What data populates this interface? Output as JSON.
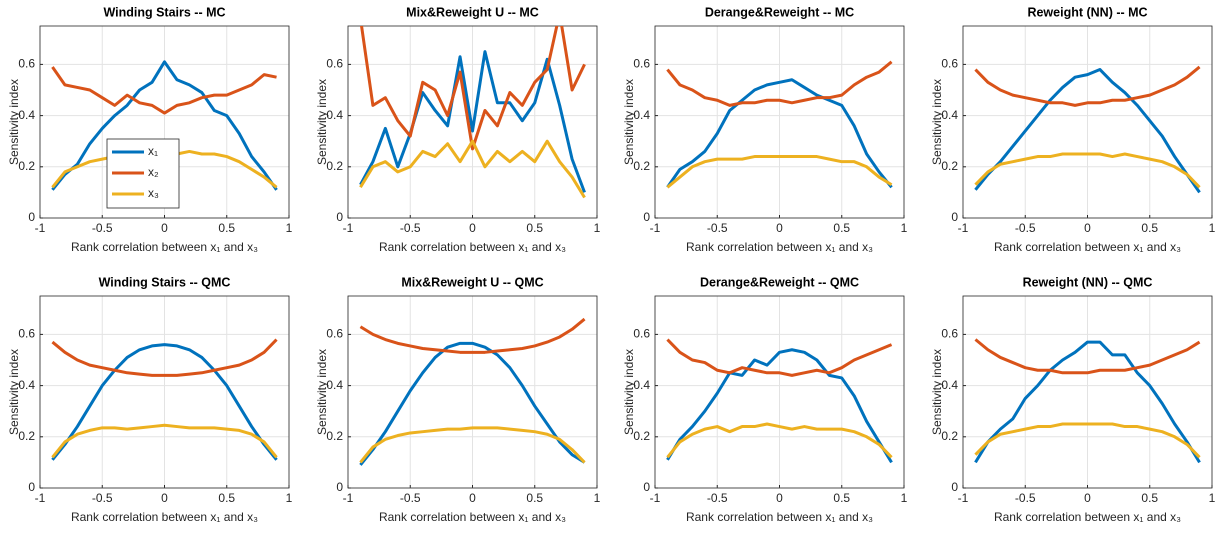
{
  "chart_data": [
    {
      "type": "line",
      "title": "Winding Stairs -- MC",
      "xlabel": "Rank correlation between x₁ and x₃",
      "ylabel": "Sensitivity index",
      "x": [
        -0.9,
        -0.8,
        -0.7,
        -0.6,
        -0.5,
        -0.4,
        -0.3,
        -0.2,
        -0.1,
        0,
        0.1,
        0.2,
        0.3,
        0.4,
        0.5,
        0.6,
        0.7,
        0.8,
        0.9
      ],
      "xlim": [
        -1,
        1
      ],
      "ylim": [
        0,
        0.75
      ],
      "xticks": [
        -1,
        -0.5,
        0,
        0.5,
        1
      ],
      "yticks": [
        0,
        0.2,
        0.4,
        0.6
      ],
      "grid": true,
      "legend": "lower left",
      "series": [
        {
          "name": "x₁",
          "color": "#0072BD",
          "values": [
            0.11,
            0.17,
            0.21,
            0.29,
            0.35,
            0.4,
            0.44,
            0.5,
            0.53,
            0.61,
            0.54,
            0.52,
            0.49,
            0.42,
            0.4,
            0.33,
            0.24,
            0.18,
            0.11
          ]
        },
        {
          "name": "x₂",
          "color": "#D95319",
          "values": [
            0.59,
            0.52,
            0.51,
            0.5,
            0.47,
            0.44,
            0.48,
            0.45,
            0.44,
            0.41,
            0.44,
            0.45,
            0.47,
            0.48,
            0.48,
            0.5,
            0.52,
            0.56,
            0.55
          ]
        },
        {
          "name": "x₃",
          "color": "#EDB120",
          "values": [
            0.12,
            0.18,
            0.2,
            0.22,
            0.23,
            0.24,
            0.25,
            0.24,
            0.25,
            0.24,
            0.25,
            0.26,
            0.25,
            0.25,
            0.24,
            0.22,
            0.19,
            0.16,
            0.12
          ]
        }
      ]
    },
    {
      "type": "line",
      "title": "Mix&Reweight U -- MC",
      "xlabel": "Rank correlation between x₁ and x₃",
      "ylabel": "Sensitivity index",
      "x": [
        -0.9,
        -0.8,
        -0.7,
        -0.6,
        -0.5,
        -0.4,
        -0.3,
        -0.2,
        -0.1,
        0,
        0.1,
        0.2,
        0.3,
        0.4,
        0.5,
        0.6,
        0.7,
        0.8,
        0.9
      ],
      "xlim": [
        -1,
        1
      ],
      "ylim": [
        0,
        0.75
      ],
      "xticks": [
        -1,
        -0.5,
        0,
        0.5,
        1
      ],
      "yticks": [
        0,
        0.2,
        0.4,
        0.6
      ],
      "grid": true,
      "series": [
        {
          "color": "#0072BD",
          "values": [
            0.13,
            0.22,
            0.35,
            0.2,
            0.33,
            0.49,
            0.42,
            0.36,
            0.63,
            0.34,
            0.65,
            0.45,
            0.45,
            0.38,
            0.45,
            0.62,
            0.44,
            0.23,
            0.1
          ]
        },
        {
          "color": "#D95319",
          "values": [
            0.78,
            0.44,
            0.47,
            0.38,
            0.32,
            0.53,
            0.5,
            0.4,
            0.57,
            0.27,
            0.42,
            0.36,
            0.49,
            0.44,
            0.53,
            0.58,
            0.8,
            0.5,
            0.6
          ]
        },
        {
          "color": "#EDB120",
          "values": [
            0.12,
            0.2,
            0.22,
            0.18,
            0.2,
            0.26,
            0.24,
            0.29,
            0.22,
            0.3,
            0.2,
            0.26,
            0.22,
            0.26,
            0.22,
            0.3,
            0.22,
            0.16,
            0.08
          ]
        }
      ]
    },
    {
      "type": "line",
      "title": "Derange&Reweight -- MC",
      "xlabel": "Rank correlation between x₁ and x₃",
      "ylabel": "Sensitivity index",
      "x": [
        -0.9,
        -0.8,
        -0.7,
        -0.6,
        -0.5,
        -0.4,
        -0.3,
        -0.2,
        -0.1,
        0,
        0.1,
        0.2,
        0.3,
        0.4,
        0.5,
        0.6,
        0.7,
        0.8,
        0.9
      ],
      "xlim": [
        -1,
        1
      ],
      "ylim": [
        0,
        0.75
      ],
      "xticks": [
        -1,
        -0.5,
        0,
        0.5,
        1
      ],
      "yticks": [
        0,
        0.2,
        0.4,
        0.6
      ],
      "grid": true,
      "series": [
        {
          "color": "#0072BD",
          "values": [
            0.12,
            0.19,
            0.22,
            0.26,
            0.33,
            0.42,
            0.46,
            0.5,
            0.52,
            0.53,
            0.54,
            0.51,
            0.48,
            0.46,
            0.44,
            0.36,
            0.25,
            0.18,
            0.12
          ]
        },
        {
          "color": "#D95319",
          "values": [
            0.58,
            0.52,
            0.5,
            0.47,
            0.46,
            0.44,
            0.45,
            0.45,
            0.46,
            0.46,
            0.45,
            0.46,
            0.47,
            0.47,
            0.48,
            0.52,
            0.55,
            0.57,
            0.61
          ]
        },
        {
          "color": "#EDB120",
          "values": [
            0.12,
            0.16,
            0.2,
            0.22,
            0.23,
            0.23,
            0.23,
            0.24,
            0.24,
            0.24,
            0.24,
            0.24,
            0.24,
            0.23,
            0.22,
            0.22,
            0.2,
            0.16,
            0.13
          ]
        }
      ]
    },
    {
      "type": "line",
      "title": "Reweight (NN) -- MC",
      "xlabel": "Rank correlation between x₁ and x₃",
      "ylabel": "Sensitivity index",
      "x": [
        -0.9,
        -0.8,
        -0.7,
        -0.6,
        -0.5,
        -0.4,
        -0.3,
        -0.2,
        -0.1,
        0,
        0.1,
        0.2,
        0.3,
        0.4,
        0.5,
        0.6,
        0.7,
        0.8,
        0.9
      ],
      "xlim": [
        -1,
        1
      ],
      "ylim": [
        0,
        0.75
      ],
      "xticks": [
        -1,
        -0.5,
        0,
        0.5,
        1
      ],
      "yticks": [
        0,
        0.2,
        0.4,
        0.6
      ],
      "grid": true,
      "series": [
        {
          "color": "#0072BD",
          "values": [
            0.11,
            0.17,
            0.22,
            0.28,
            0.34,
            0.4,
            0.46,
            0.51,
            0.55,
            0.56,
            0.58,
            0.53,
            0.49,
            0.44,
            0.38,
            0.32,
            0.24,
            0.17,
            0.1
          ]
        },
        {
          "color": "#D95319",
          "values": [
            0.58,
            0.53,
            0.5,
            0.48,
            0.47,
            0.46,
            0.45,
            0.45,
            0.44,
            0.45,
            0.45,
            0.46,
            0.46,
            0.47,
            0.48,
            0.5,
            0.52,
            0.55,
            0.59
          ]
        },
        {
          "color": "#EDB120",
          "values": [
            0.13,
            0.18,
            0.21,
            0.22,
            0.23,
            0.24,
            0.24,
            0.25,
            0.25,
            0.25,
            0.25,
            0.24,
            0.25,
            0.24,
            0.23,
            0.22,
            0.2,
            0.17,
            0.12
          ]
        }
      ]
    },
    {
      "type": "line",
      "title": "Winding Stairs -- QMC",
      "xlabel": "Rank correlation between x₁ and x₃",
      "ylabel": "Sensitivity index",
      "x": [
        -0.9,
        -0.8,
        -0.7,
        -0.6,
        -0.5,
        -0.4,
        -0.3,
        -0.2,
        -0.1,
        0,
        0.1,
        0.2,
        0.3,
        0.4,
        0.5,
        0.6,
        0.7,
        0.8,
        0.9
      ],
      "xlim": [
        -1,
        1
      ],
      "ylim": [
        0,
        0.75
      ],
      "xticks": [
        -1,
        -0.5,
        0,
        0.5,
        1
      ],
      "yticks": [
        0,
        0.2,
        0.4,
        0.6
      ],
      "grid": true,
      "series": [
        {
          "color": "#0072BD",
          "values": [
            0.11,
            0.17,
            0.24,
            0.32,
            0.4,
            0.46,
            0.51,
            0.54,
            0.555,
            0.56,
            0.555,
            0.54,
            0.51,
            0.46,
            0.4,
            0.32,
            0.24,
            0.17,
            0.11
          ]
        },
        {
          "color": "#D95319",
          "values": [
            0.57,
            0.53,
            0.5,
            0.48,
            0.47,
            0.46,
            0.45,
            0.445,
            0.44,
            0.44,
            0.44,
            0.445,
            0.45,
            0.46,
            0.47,
            0.48,
            0.5,
            0.53,
            0.58
          ]
        },
        {
          "color": "#EDB120",
          "values": [
            0.12,
            0.18,
            0.21,
            0.225,
            0.235,
            0.235,
            0.23,
            0.235,
            0.24,
            0.245,
            0.24,
            0.235,
            0.235,
            0.235,
            0.23,
            0.225,
            0.21,
            0.18,
            0.12
          ]
        }
      ]
    },
    {
      "type": "line",
      "title": "Mix&Reweight U -- QMC",
      "xlabel": "Rank correlation between x₁ and x₃",
      "ylabel": "Sensitivity index",
      "x": [
        -0.9,
        -0.8,
        -0.7,
        -0.6,
        -0.5,
        -0.4,
        -0.3,
        -0.2,
        -0.1,
        0,
        0.1,
        0.2,
        0.3,
        0.4,
        0.5,
        0.6,
        0.7,
        0.8,
        0.9
      ],
      "xlim": [
        -1,
        1
      ],
      "ylim": [
        0,
        0.75
      ],
      "xticks": [
        -1,
        -0.5,
        0,
        0.5,
        1
      ],
      "yticks": [
        0,
        0.2,
        0.4,
        0.6
      ],
      "grid": true,
      "series": [
        {
          "color": "#0072BD",
          "values": [
            0.09,
            0.15,
            0.22,
            0.3,
            0.38,
            0.45,
            0.51,
            0.55,
            0.565,
            0.565,
            0.55,
            0.52,
            0.47,
            0.4,
            0.32,
            0.25,
            0.18,
            0.13,
            0.1
          ]
        },
        {
          "color": "#D95319",
          "values": [
            0.63,
            0.6,
            0.58,
            0.565,
            0.555,
            0.545,
            0.54,
            0.535,
            0.53,
            0.53,
            0.53,
            0.535,
            0.54,
            0.545,
            0.555,
            0.57,
            0.59,
            0.62,
            0.66
          ]
        },
        {
          "color": "#EDB120",
          "values": [
            0.1,
            0.16,
            0.19,
            0.205,
            0.215,
            0.22,
            0.225,
            0.23,
            0.23,
            0.235,
            0.235,
            0.235,
            0.23,
            0.225,
            0.22,
            0.21,
            0.19,
            0.15,
            0.1
          ]
        }
      ]
    },
    {
      "type": "line",
      "title": "Derange&Reweight -- QMC",
      "xlabel": "Rank correlation between x₁ and x₃",
      "ylabel": "Sensitivity index",
      "x": [
        -0.9,
        -0.8,
        -0.7,
        -0.6,
        -0.5,
        -0.4,
        -0.3,
        -0.2,
        -0.1,
        0,
        0.1,
        0.2,
        0.3,
        0.4,
        0.5,
        0.6,
        0.7,
        0.8,
        0.9
      ],
      "xlim": [
        -1,
        1
      ],
      "ylim": [
        0,
        0.75
      ],
      "xticks": [
        -1,
        -0.5,
        0,
        0.5,
        1
      ],
      "yticks": [
        0,
        0.2,
        0.4,
        0.6
      ],
      "grid": true,
      "series": [
        {
          "color": "#0072BD",
          "values": [
            0.11,
            0.19,
            0.24,
            0.3,
            0.37,
            0.45,
            0.44,
            0.5,
            0.48,
            0.53,
            0.54,
            0.53,
            0.5,
            0.44,
            0.43,
            0.36,
            0.26,
            0.18,
            0.1
          ]
        },
        {
          "color": "#D95319",
          "values": [
            0.58,
            0.53,
            0.5,
            0.49,
            0.46,
            0.45,
            0.47,
            0.46,
            0.45,
            0.45,
            0.44,
            0.45,
            0.46,
            0.45,
            0.47,
            0.5,
            0.52,
            0.54,
            0.56
          ]
        },
        {
          "color": "#EDB120",
          "values": [
            0.12,
            0.18,
            0.21,
            0.23,
            0.24,
            0.22,
            0.24,
            0.24,
            0.25,
            0.24,
            0.23,
            0.24,
            0.23,
            0.23,
            0.23,
            0.22,
            0.2,
            0.17,
            0.12
          ]
        }
      ]
    },
    {
      "type": "line",
      "title": "Reweight (NN) -- QMC",
      "xlabel": "Rank correlation between x₁ and x₃",
      "ylabel": "Sensitivity index",
      "x": [
        -0.9,
        -0.8,
        -0.7,
        -0.6,
        -0.5,
        -0.4,
        -0.3,
        -0.2,
        -0.1,
        0,
        0.1,
        0.2,
        0.3,
        0.4,
        0.5,
        0.6,
        0.7,
        0.8,
        0.9
      ],
      "xlim": [
        -1,
        1
      ],
      "ylim": [
        0,
        0.75
      ],
      "xticks": [
        -1,
        -0.5,
        0,
        0.5,
        1
      ],
      "yticks": [
        0,
        0.2,
        0.4,
        0.6
      ],
      "grid": true,
      "series": [
        {
          "color": "#0072BD",
          "values": [
            0.1,
            0.18,
            0.23,
            0.27,
            0.35,
            0.4,
            0.46,
            0.5,
            0.53,
            0.57,
            0.57,
            0.52,
            0.52,
            0.45,
            0.4,
            0.33,
            0.25,
            0.18,
            0.1
          ]
        },
        {
          "color": "#D95319",
          "values": [
            0.58,
            0.54,
            0.51,
            0.49,
            0.47,
            0.46,
            0.46,
            0.45,
            0.45,
            0.45,
            0.46,
            0.46,
            0.46,
            0.47,
            0.48,
            0.5,
            0.52,
            0.54,
            0.57
          ]
        },
        {
          "color": "#EDB120",
          "values": [
            0.13,
            0.18,
            0.21,
            0.22,
            0.23,
            0.24,
            0.24,
            0.25,
            0.25,
            0.25,
            0.25,
            0.25,
            0.24,
            0.24,
            0.23,
            0.22,
            0.2,
            0.17,
            0.12
          ]
        }
      ]
    }
  ]
}
